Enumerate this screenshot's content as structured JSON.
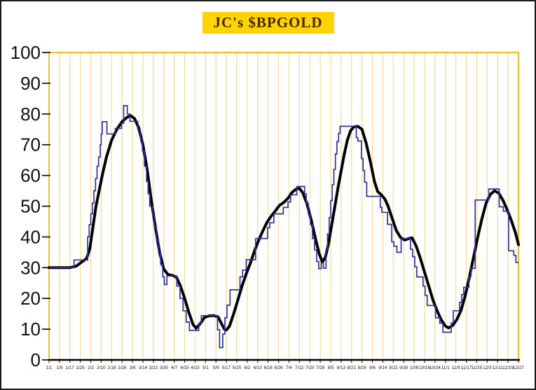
{
  "title": "JC's $BPGOLD",
  "colors": {
    "title_bg": "#FFD400",
    "title_text": "#4a2800",
    "gridline": "#F2DC96",
    "plot_border_gold": "#EFC23B",
    "axis_black": "#000000",
    "step_line": "#32329B",
    "smooth_line": "#000000",
    "label_text": "#111111"
  },
  "chart_data": {
    "type": "line",
    "title": "JC's $BPGOLD",
    "grid": "vertical-only",
    "legend": "none",
    "x_axis": {
      "range": [
        0,
        45
      ],
      "tick_labels": [
        "1/1",
        "1/9",
        "1/17",
        "1/25",
        "2/2",
        "2/10",
        "2/18",
        "2/26",
        "3/6",
        "3/14",
        "3/22",
        "3/30",
        "4/7",
        "4/15",
        "4/23",
        "5/1",
        "5/9",
        "5/17",
        "5/25",
        "6/2",
        "6/10",
        "6/18",
        "6/26",
        "7/4",
        "7/12",
        "7/20",
        "7/28",
        "8/5",
        "8/13",
        "8/21",
        "8/29",
        "9/6",
        "9/14",
        "9/22",
        "9/30",
        "10/8",
        "10/16",
        "10/24",
        "11/1",
        "11/9",
        "11/17",
        "11/25",
        "12/3",
        "12/11",
        "12/19",
        "12/27"
      ]
    },
    "y_axis": {
      "range": [
        0,
        100
      ],
      "tick_interval": 10,
      "tick_labels": [
        "0",
        "10",
        "20",
        "30",
        "40",
        "50",
        "60",
        "70",
        "80",
        "90",
        "100"
      ]
    },
    "series": [
      {
        "name": "blue-step-line",
        "style": "step",
        "color": "#32329B",
        "width": 1.7,
        "points": [
          [
            0,
            30
          ],
          [
            2.4,
            32.5
          ],
          [
            3.7,
            40
          ],
          [
            3.85,
            44
          ],
          [
            4.0,
            47.5
          ],
          [
            4.15,
            51
          ],
          [
            4.3,
            55
          ],
          [
            4.45,
            59
          ],
          [
            4.6,
            63
          ],
          [
            4.75,
            66
          ],
          [
            4.9,
            70
          ],
          [
            5.0,
            73.5
          ],
          [
            5.1,
            77.5
          ],
          [
            5.55,
            73.5
          ],
          [
            6.35,
            75.3
          ],
          [
            6.95,
            77
          ],
          [
            7.15,
            82.7
          ],
          [
            7.5,
            80
          ],
          [
            7.75,
            77.6
          ],
          [
            8.5,
            75
          ],
          [
            8.75,
            72
          ],
          [
            8.95,
            68
          ],
          [
            9.15,
            63
          ],
          [
            9.35,
            58
          ],
          [
            9.5,
            54
          ],
          [
            9.65,
            50
          ],
          [
            9.95,
            47
          ],
          [
            10.1,
            43
          ],
          [
            10.3,
            39
          ],
          [
            10.5,
            35
          ],
          [
            10.7,
            31
          ],
          [
            10.9,
            27
          ],
          [
            11.05,
            24.5
          ],
          [
            11.3,
            27.3
          ],
          [
            12.25,
            24
          ],
          [
            12.55,
            20
          ],
          [
            12.85,
            16
          ],
          [
            13.15,
            12.3
          ],
          [
            13.45,
            9.6
          ],
          [
            14.35,
            11.9
          ],
          [
            14.6,
            14.4
          ],
          [
            16.15,
            9.8
          ],
          [
            16.35,
            4
          ],
          [
            16.65,
            8.4
          ],
          [
            16.85,
            13.7
          ],
          [
            17.05,
            17.8
          ],
          [
            17.35,
            22.8
          ],
          [
            18.3,
            27
          ],
          [
            18.55,
            29.2
          ],
          [
            18.9,
            32.6
          ],
          [
            19.8,
            39.5
          ],
          [
            20.95,
            43
          ],
          [
            21.15,
            44.6
          ],
          [
            21.55,
            47.5
          ],
          [
            22.45,
            49.6
          ],
          [
            22.9,
            51.4
          ],
          [
            23.15,
            53.7
          ],
          [
            23.75,
            56.4
          ],
          [
            24.5,
            54
          ],
          [
            24.65,
            51
          ],
          [
            24.85,
            47.5
          ],
          [
            25.05,
            44
          ],
          [
            25.25,
            39.5
          ],
          [
            25.45,
            35.8
          ],
          [
            25.65,
            32
          ],
          [
            25.85,
            29.7
          ],
          [
            26.1,
            31.5
          ],
          [
            26.3,
            29.8
          ],
          [
            26.55,
            35.8
          ],
          [
            26.7,
            41
          ],
          [
            26.85,
            46.3
          ],
          [
            27.0,
            51.8
          ],
          [
            27.15,
            57
          ],
          [
            27.3,
            62
          ],
          [
            27.45,
            67
          ],
          [
            27.6,
            71
          ],
          [
            27.75,
            73.7
          ],
          [
            27.9,
            76
          ],
          [
            29.45,
            72.3
          ],
          [
            29.6,
            71.2
          ],
          [
            29.95,
            65.5
          ],
          [
            30.1,
            61.6
          ],
          [
            30.25,
            57.8
          ],
          [
            30.45,
            53.2
          ],
          [
            31.75,
            49.6
          ],
          [
            31.9,
            48
          ],
          [
            32.45,
            44.1
          ],
          [
            32.85,
            38.4
          ],
          [
            33.05,
            37
          ],
          [
            33.35,
            35
          ],
          [
            33.75,
            39.5
          ],
          [
            34.65,
            36
          ],
          [
            34.85,
            33.6
          ],
          [
            35.05,
            30.3
          ],
          [
            35.25,
            27
          ],
          [
            35.85,
            24
          ],
          [
            36.05,
            21
          ],
          [
            36.25,
            17.7
          ],
          [
            37.05,
            13.7
          ],
          [
            37.45,
            11.9
          ],
          [
            37.75,
            9
          ],
          [
            38.55,
            12
          ],
          [
            38.75,
            16
          ],
          [
            39.35,
            18.7
          ],
          [
            39.55,
            21.2
          ],
          [
            39.75,
            23.6
          ],
          [
            40.25,
            27.2
          ],
          [
            40.45,
            29.8
          ],
          [
            40.85,
            52
          ],
          [
            42.15,
            55.6
          ],
          [
            43.15,
            49.8
          ],
          [
            43.55,
            48.4
          ],
          [
            44.05,
            35.5
          ],
          [
            44.55,
            34
          ],
          [
            44.75,
            31.7
          ],
          [
            45,
            31.7
          ]
        ]
      },
      {
        "name": "black-smooth-line",
        "style": "smooth",
        "color": "#000000",
        "width": 4,
        "points": [
          [
            0,
            30
          ],
          [
            1,
            30
          ],
          [
            2,
            30
          ],
          [
            2.6,
            30.5
          ],
          [
            3.2,
            32
          ],
          [
            3.6,
            33
          ],
          [
            3.9,
            36
          ],
          [
            4.2,
            43
          ],
          [
            4.5,
            50
          ],
          [
            4.8,
            55
          ],
          [
            5.1,
            60
          ],
          [
            5.5,
            66
          ],
          [
            6,
            71.5
          ],
          [
            6.5,
            75
          ],
          [
            7,
            77.5
          ],
          [
            7.5,
            79
          ],
          [
            7.8,
            79.5
          ],
          [
            8.2,
            78.5
          ],
          [
            8.6,
            75.5
          ],
          [
            9,
            70
          ],
          [
            9.4,
            62
          ],
          [
            9.8,
            52
          ],
          [
            10.2,
            43
          ],
          [
            10.6,
            35
          ],
          [
            11,
            29.5
          ],
          [
            11.4,
            27.8
          ],
          [
            11.8,
            27.5
          ],
          [
            12.2,
            27
          ],
          [
            12.6,
            24
          ],
          [
            13,
            20
          ],
          [
            13.4,
            15.5
          ],
          [
            13.8,
            11.5
          ],
          [
            14.1,
            10.3
          ],
          [
            14.5,
            11.8
          ],
          [
            14.9,
            13.8
          ],
          [
            15.3,
            14.3
          ],
          [
            15.8,
            14.4
          ],
          [
            16.2,
            14
          ],
          [
            16.5,
            12
          ],
          [
            16.8,
            10
          ],
          [
            17,
            9.7
          ],
          [
            17.3,
            11
          ],
          [
            17.7,
            15
          ],
          [
            18.1,
            19.5
          ],
          [
            18.5,
            24
          ],
          [
            18.9,
            28
          ],
          [
            19.3,
            31.5
          ],
          [
            19.7,
            35.5
          ],
          [
            20.1,
            39
          ],
          [
            20.5,
            42
          ],
          [
            20.9,
            44.8
          ],
          [
            21.3,
            46.8
          ],
          [
            21.7,
            48.5
          ],
          [
            22.1,
            50.3
          ],
          [
            22.5,
            51.2
          ],
          [
            22.9,
            52.6
          ],
          [
            23.3,
            54.5
          ],
          [
            23.7,
            55.6
          ],
          [
            24,
            55.8
          ],
          [
            24.3,
            54.5
          ],
          [
            24.7,
            51
          ],
          [
            25.1,
            46
          ],
          [
            25.5,
            40
          ],
          [
            25.9,
            34.5
          ],
          [
            26.2,
            31.8
          ],
          [
            26.5,
            33.5
          ],
          [
            26.8,
            38
          ],
          [
            27.1,
            44
          ],
          [
            27.4,
            50
          ],
          [
            27.7,
            56
          ],
          [
            28,
            61.5
          ],
          [
            28.3,
            67
          ],
          [
            28.6,
            71.5
          ],
          [
            28.9,
            74.5
          ],
          [
            29.2,
            75.8
          ],
          [
            29.6,
            76
          ],
          [
            30,
            75
          ],
          [
            30.4,
            70.5
          ],
          [
            30.8,
            64.5
          ],
          [
            31.2,
            58
          ],
          [
            31.5,
            54.8
          ],
          [
            31.9,
            53.5
          ],
          [
            32.2,
            52.3
          ],
          [
            32.5,
            50
          ],
          [
            32.9,
            46
          ],
          [
            33.3,
            42
          ],
          [
            33.7,
            39.8
          ],
          [
            34.1,
            39
          ],
          [
            34.5,
            39.5
          ],
          [
            34.8,
            39.7
          ],
          [
            35.2,
            37
          ],
          [
            35.6,
            33
          ],
          [
            36,
            28.5
          ],
          [
            36.4,
            24
          ],
          [
            36.8,
            19.5
          ],
          [
            37.2,
            16
          ],
          [
            37.6,
            13
          ],
          [
            38,
            11
          ],
          [
            38.3,
            10.4
          ],
          [
            38.7,
            11.2
          ],
          [
            39.1,
            13.2
          ],
          [
            39.5,
            16.2
          ],
          [
            39.9,
            21
          ],
          [
            40.3,
            27
          ],
          [
            40.7,
            33.5
          ],
          [
            41.1,
            40
          ],
          [
            41.5,
            46
          ],
          [
            41.9,
            51
          ],
          [
            42.3,
            53.8
          ],
          [
            42.7,
            55
          ],
          [
            43.1,
            54.3
          ],
          [
            43.5,
            52
          ],
          [
            43.9,
            49
          ],
          [
            44.3,
            45.5
          ],
          [
            44.7,
            41.5
          ],
          [
            45,
            37.5
          ]
        ]
      }
    ]
  }
}
